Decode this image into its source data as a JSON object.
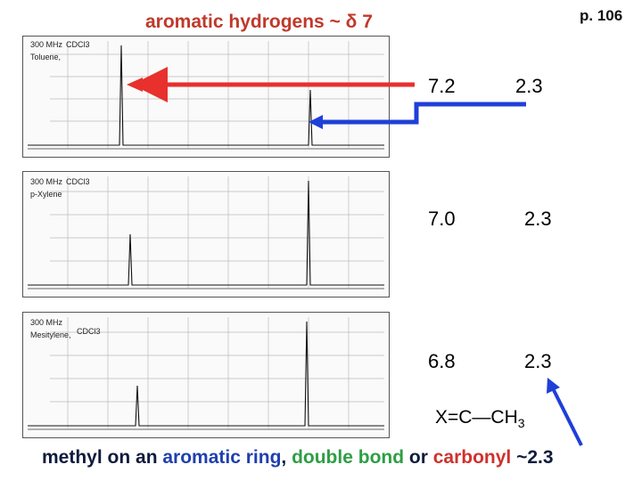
{
  "header": {
    "title": "aromatic hydrogens  ~ δ 7",
    "page_number": "p. 106"
  },
  "spectra": [
    {
      "instrument": "300 MHz",
      "solvent": "CDCl3",
      "compound": "Toluene,",
      "aromatic_shift": "7.2",
      "methyl_shift": "2.3"
    },
    {
      "instrument": "300 MHz",
      "solvent": "CDCl3",
      "compound": "p-Xylene",
      "aromatic_shift": "7.0",
      "methyl_shift": "2.3"
    },
    {
      "instrument": "300 MHz",
      "solvent": "CDCl3",
      "compound": "Mesitylene,",
      "aromatic_shift": "6.8",
      "methyl_shift": "2.3"
    }
  ],
  "formula": {
    "prefix": "X=C—CH",
    "subscript": "3"
  },
  "footer": {
    "part1": "methyl on an ",
    "part2": "aromatic ring",
    "part3": ", ",
    "part4": "double bond",
    "part5": " or ",
    "part6": "carbonyl",
    "part7": " ~2.3"
  },
  "colors": {
    "title": "#c0392b",
    "red_arrow": "#e8302c",
    "blue_arrow": "#1f3fd8"
  }
}
